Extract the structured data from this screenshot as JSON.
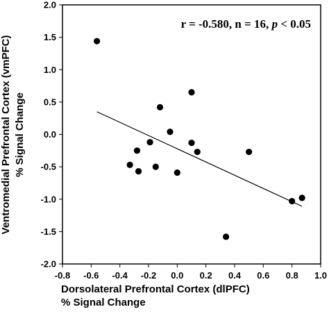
{
  "chart_data": {
    "type": "scatter",
    "title": "",
    "xlabel": [
      "Dorsolateral Prefrontal Cortex (dlPFC)",
      "% Signal Change"
    ],
    "ylabel": [
      "Ventromedial Prefrontal Cortex (vmPFC)",
      "% Signal Change"
    ],
    "xlim": [
      -0.8,
      1.0
    ],
    "ylim": [
      -2.0,
      2.0
    ],
    "xticks": [
      "-0.8",
      "-0.6",
      "-0.4",
      "-0.2",
      "0.0",
      "0.2",
      "0.4",
      "0.6",
      "0.8",
      "1.0"
    ],
    "yticks": [
      "-2.0",
      "-1.5",
      "-1.0",
      "-0.5",
      "0.0",
      "0.5",
      "1.0",
      "1.5",
      "2.0"
    ],
    "grid": false,
    "annotation": {
      "r_part": "r = -0.580, n = 16, ",
      "p_symbol": "p",
      "p_part": " < 0.05"
    },
    "points": [
      {
        "x": -0.56,
        "y": 1.44
      },
      {
        "x": -0.33,
        "y": -0.47
      },
      {
        "x": -0.28,
        "y": -0.25
      },
      {
        "x": -0.27,
        "y": -0.57
      },
      {
        "x": -0.19,
        "y": -0.12
      },
      {
        "x": -0.15,
        "y": -0.5
      },
      {
        "x": -0.12,
        "y": 0.42
      },
      {
        "x": -0.05,
        "y": 0.04
      },
      {
        "x": 0.0,
        "y": -0.59
      },
      {
        "x": 0.1,
        "y": 0.65
      },
      {
        "x": 0.1,
        "y": -0.13
      },
      {
        "x": 0.14,
        "y": -0.27
      },
      {
        "x": 0.34,
        "y": -1.58
      },
      {
        "x": 0.5,
        "y": -0.27
      },
      {
        "x": 0.8,
        "y": -1.03
      },
      {
        "x": 0.87,
        "y": -0.98
      }
    ],
    "regression_line": {
      "x": [
        -0.56,
        0.87
      ],
      "y": [
        0.35,
        -1.11
      ]
    }
  }
}
